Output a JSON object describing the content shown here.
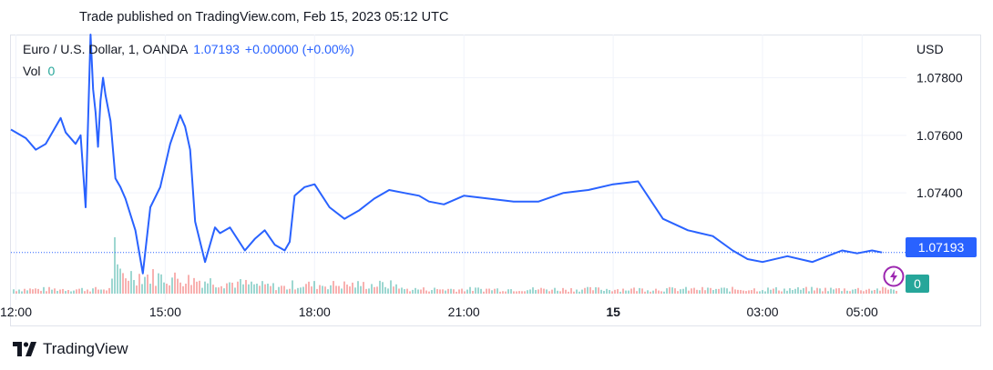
{
  "header": {
    "caption": "Trade published on TradingView.com, Feb 15, 2023 05:12 UTC"
  },
  "legend": {
    "symbol": "Euro / U.S. Dollar, 1, OANDA",
    "price": "1.07193",
    "change": "+0.00000 (+0.00%)",
    "vol_label": "Vol",
    "vol_value": "0"
  },
  "price_axis": {
    "currency": "USD",
    "last_price_label": "1.07193",
    "vol_badge": "0"
  },
  "brand": {
    "name": "TradingView"
  },
  "colors": {
    "line": "#2962ff",
    "volume_up": "#26a69a",
    "volume_down": "#ef5350",
    "last_price_badge": "#2962ff",
    "vol_badge": "#26a69a",
    "grid": "#f0f3fa"
  },
  "chart_data": {
    "type": "line",
    "title": "Euro / U.S. Dollar, 1, OANDA",
    "xlabel": "",
    "ylabel": "",
    "ylim": [
      1.0705,
      1.0795
    ],
    "y_ticks": [
      1.074,
      1.076,
      1.078
    ],
    "y_tick_labels": [
      "1.07400",
      "1.07600",
      "1.07800"
    ],
    "x_tick_labels": [
      "12:00",
      "15:00",
      "18:00",
      "21:00",
      "15",
      "03:00",
      "05:00"
    ],
    "x_tick_hours": [
      12,
      15,
      18,
      21,
      24,
      27,
      29
    ],
    "x_range_hours": [
      11.9,
      29.8
    ],
    "grid": true,
    "series": [
      {
        "x": [
          11.9,
          12.2,
          12.4,
          12.6,
          12.9,
          13.0,
          13.2,
          13.3,
          13.4,
          13.5,
          13.55,
          13.6,
          13.65,
          13.7,
          13.75,
          13.8,
          13.9,
          14.0,
          14.1,
          14.2,
          14.4,
          14.55,
          14.7,
          14.9,
          15.1,
          15.3,
          15.4,
          15.5,
          15.6,
          15.8,
          15.9,
          16.0,
          16.1,
          16.3,
          16.6,
          16.8,
          17.0,
          17.2,
          17.4,
          17.5,
          17.6,
          17.8,
          18.0,
          18.3,
          18.6,
          18.9,
          19.2,
          19.5,
          19.8,
          20.1,
          20.3,
          20.6,
          21.0,
          21.5,
          22.0,
          22.5,
          23.0,
          23.5,
          24.0,
          24.5,
          25.0,
          25.5,
          26.0,
          26.4,
          26.7,
          27.0,
          27.5,
          28.0,
          28.3,
          28.6,
          28.9,
          29.2,
          29.4
        ],
        "y": [
          1.0762,
          1.0759,
          1.0755,
          1.0757,
          1.0766,
          1.0761,
          1.0757,
          1.076,
          1.0735,
          1.0795,
          1.0776,
          1.0768,
          1.0756,
          1.0772,
          1.078,
          1.0774,
          1.0765,
          1.0745,
          1.0742,
          1.0738,
          1.0727,
          1.0712,
          1.0735,
          1.0742,
          1.0757,
          1.0767,
          1.0763,
          1.0755,
          1.073,
          1.0716,
          1.0722,
          1.0728,
          1.0726,
          1.0728,
          1.072,
          1.0724,
          1.0727,
          1.0722,
          1.072,
          1.0723,
          1.0739,
          1.0742,
          1.0743,
          1.0735,
          1.0731,
          1.0734,
          1.0738,
          1.0741,
          1.074,
          1.0739,
          1.0737,
          1.0736,
          1.0739,
          1.0738,
          1.0737,
          1.0737,
          1.074,
          1.0741,
          1.0743,
          1.0744,
          1.0731,
          1.0727,
          1.0725,
          1.072,
          1.0717,
          1.0716,
          1.0718,
          1.0716,
          1.0718,
          1.072,
          1.0719,
          1.072,
          1.07193
        ]
      }
    ],
    "last_price": 1.07193
  }
}
